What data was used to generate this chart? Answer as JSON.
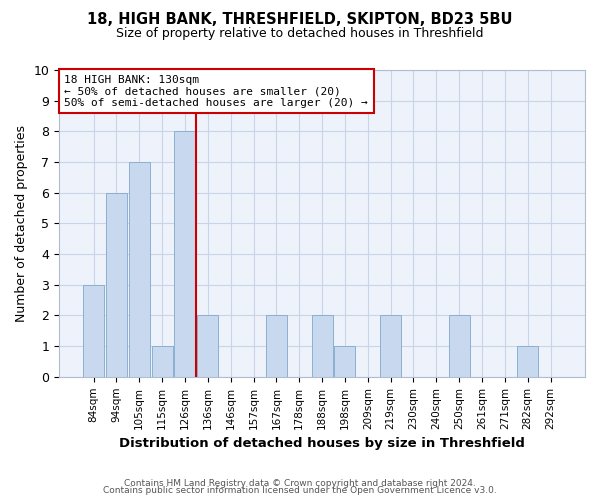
{
  "title": "18, HIGH BANK, THRESHFIELD, SKIPTON, BD23 5BU",
  "subtitle": "Size of property relative to detached houses in Threshfield",
  "xlabel": "Distribution of detached houses by size in Threshfield",
  "ylabel": "Number of detached properties",
  "footer1": "Contains HM Land Registry data © Crown copyright and database right 2024.",
  "footer2": "Contains public sector information licensed under the Open Government Licence v3.0.",
  "bar_labels": [
    "84sqm",
    "94sqm",
    "105sqm",
    "115sqm",
    "126sqm",
    "136sqm",
    "146sqm",
    "157sqm",
    "167sqm",
    "178sqm",
    "188sqm",
    "198sqm",
    "209sqm",
    "219sqm",
    "230sqm",
    "240sqm",
    "250sqm",
    "261sqm",
    "271sqm",
    "282sqm",
    "292sqm"
  ],
  "bar_values": [
    3,
    6,
    7,
    1,
    8,
    2,
    0,
    0,
    2,
    0,
    2,
    1,
    0,
    2,
    0,
    0,
    2,
    0,
    0,
    1,
    0
  ],
  "bar_color": "#c8d8ee",
  "bar_edge_color": "#8ab0d0",
  "annotation_line1": "18 HIGH BANK: 130sqm",
  "annotation_line2": "← 50% of detached houses are smaller (20)",
  "annotation_line3": "50% of semi-detached houses are larger (20) →",
  "marker_bar_index": 5,
  "marker_color": "#cc0000",
  "ylim": [
    0,
    10
  ],
  "yticks": [
    0,
    1,
    2,
    3,
    4,
    5,
    6,
    7,
    8,
    9,
    10
  ],
  "grid_color": "#c8d4e8",
  "background_color": "#ffffff",
  "axes_background": "#eef2fa"
}
